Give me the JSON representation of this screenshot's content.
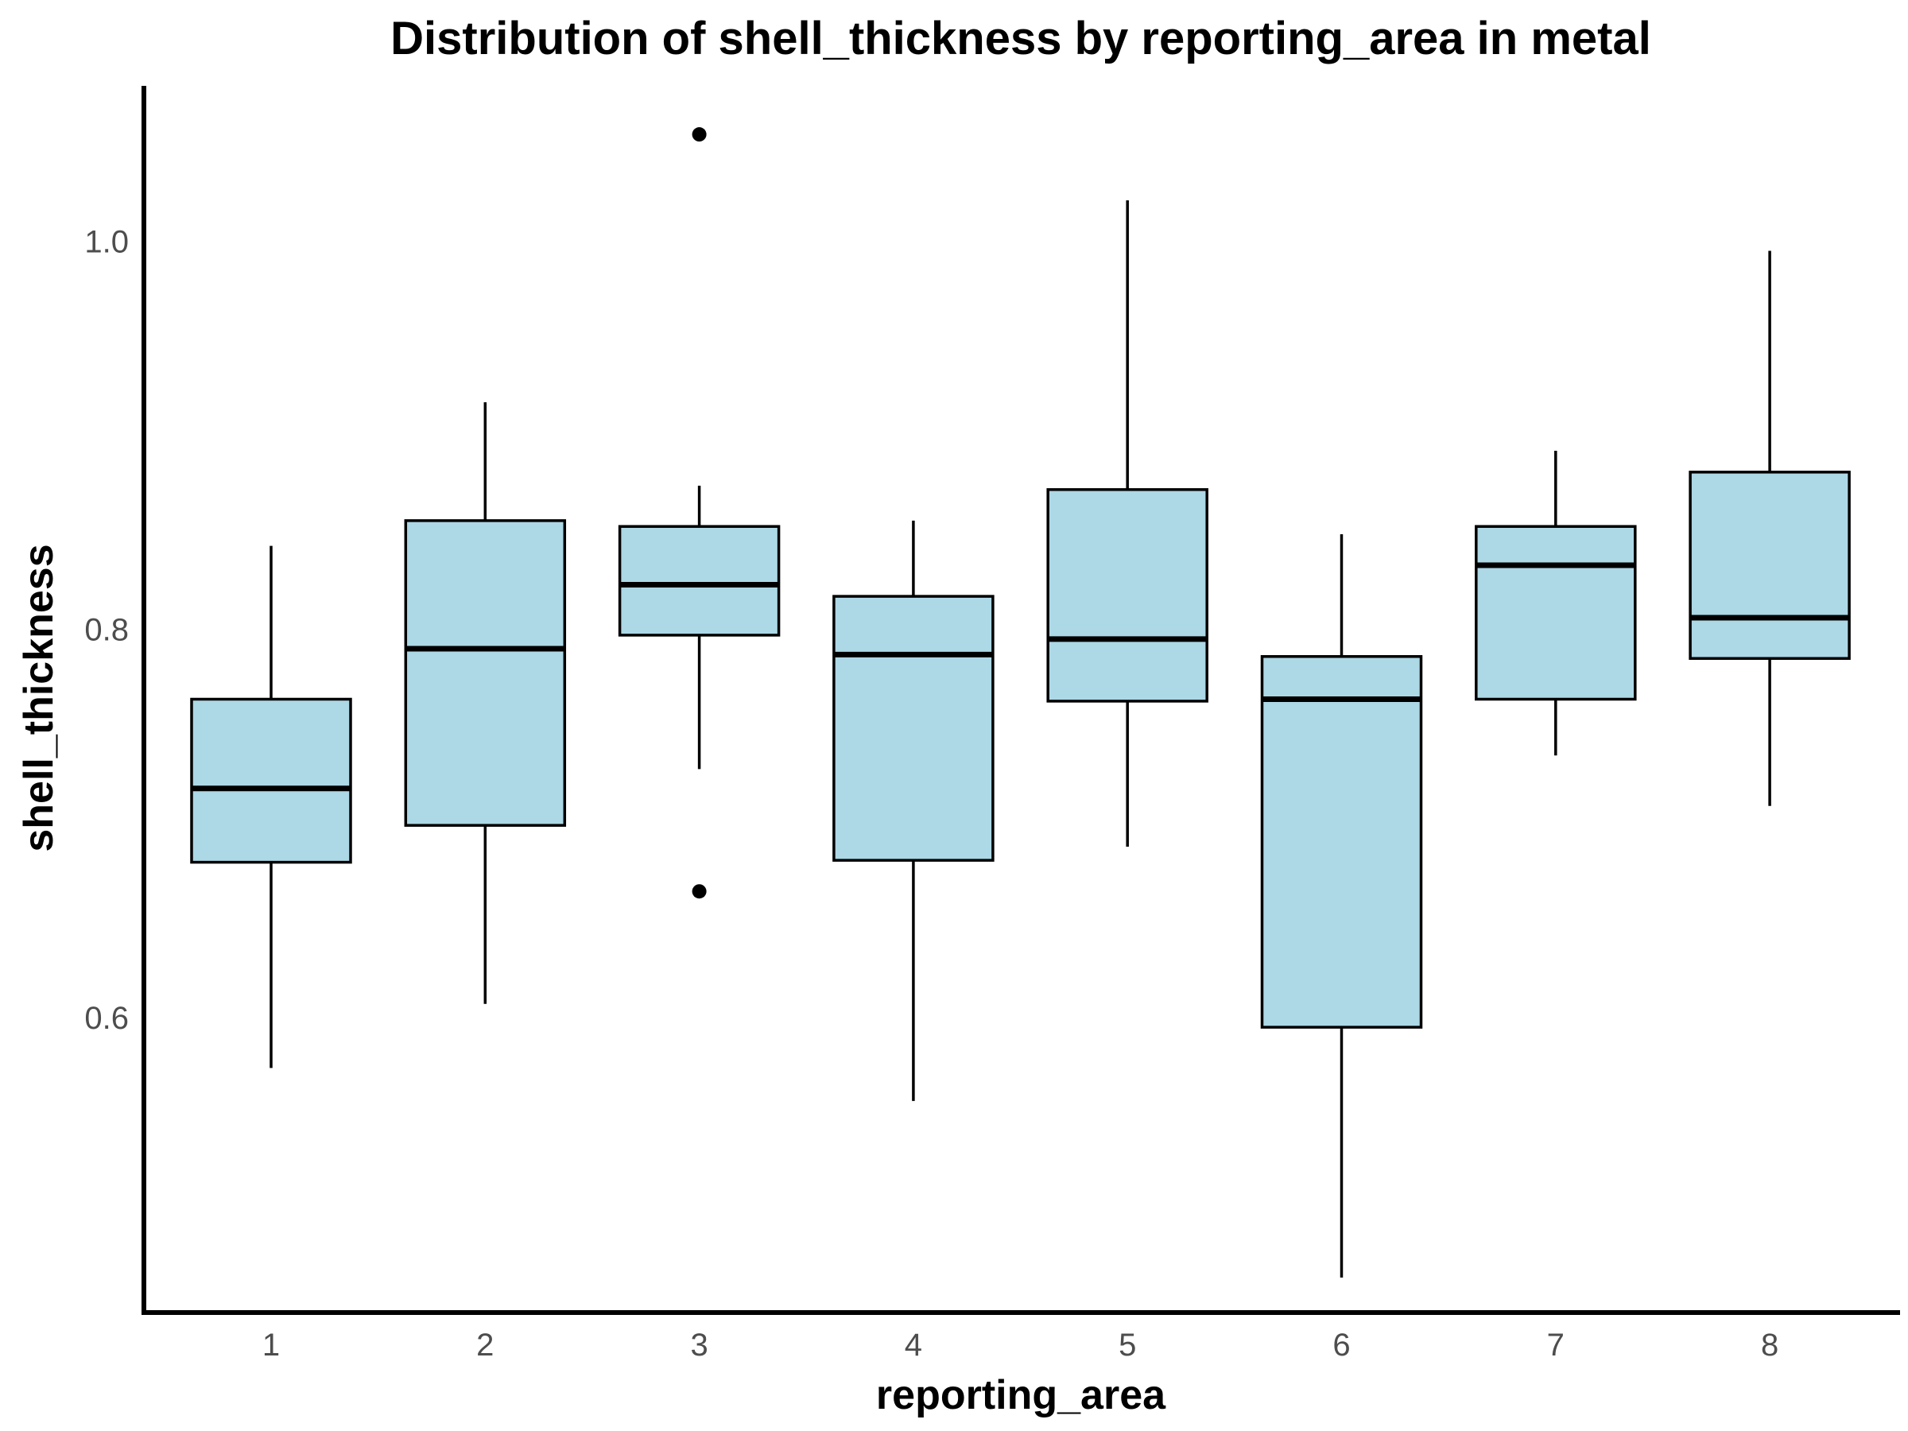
{
  "chart_data": {
    "type": "boxplot",
    "title": "Distribution of shell_thickness by reporting_area in metal",
    "xlabel": "reporting_area",
    "ylabel": "shell_thickness",
    "categories": [
      "1",
      "2",
      "3",
      "4",
      "5",
      "6",
      "7",
      "8"
    ],
    "yticks": [
      {
        "value": 0.6,
        "label": "0.6"
      },
      {
        "value": 0.8,
        "label": "0.8"
      },
      {
        "value": 1.0,
        "label": "1.0"
      }
    ],
    "ylim": [
      0.448,
      1.08
    ],
    "box_color": "#add8e6",
    "grid": false,
    "legend": "none",
    "boxes": [
      {
        "category": "1",
        "whisker_low": 0.574,
        "q1": 0.68,
        "median": 0.718,
        "q3": 0.764,
        "whisker_high": 0.843,
        "outliers": []
      },
      {
        "category": "2",
        "whisker_low": 0.607,
        "q1": 0.699,
        "median": 0.79,
        "q3": 0.856,
        "whisker_high": 0.917,
        "outliers": []
      },
      {
        "category": "3",
        "whisker_low": 0.728,
        "q1": 0.797,
        "median": 0.823,
        "q3": 0.853,
        "whisker_high": 0.874,
        "outliers": [
          1.055,
          0.665
        ]
      },
      {
        "category": "4",
        "whisker_low": 0.557,
        "q1": 0.681,
        "median": 0.787,
        "q3": 0.817,
        "whisker_high": 0.856,
        "outliers": []
      },
      {
        "category": "5",
        "whisker_low": 0.688,
        "q1": 0.763,
        "median": 0.795,
        "q3": 0.872,
        "whisker_high": 1.021,
        "outliers": []
      },
      {
        "category": "6",
        "whisker_low": 0.466,
        "q1": 0.595,
        "median": 0.764,
        "q3": 0.786,
        "whisker_high": 0.849,
        "outliers": []
      },
      {
        "category": "7",
        "whisker_low": 0.735,
        "q1": 0.764,
        "median": 0.833,
        "q3": 0.853,
        "whisker_high": 0.892,
        "outliers": []
      },
      {
        "category": "8",
        "whisker_low": 0.709,
        "q1": 0.785,
        "median": 0.806,
        "q3": 0.881,
        "whisker_high": 0.995,
        "outliers": []
      }
    ]
  }
}
